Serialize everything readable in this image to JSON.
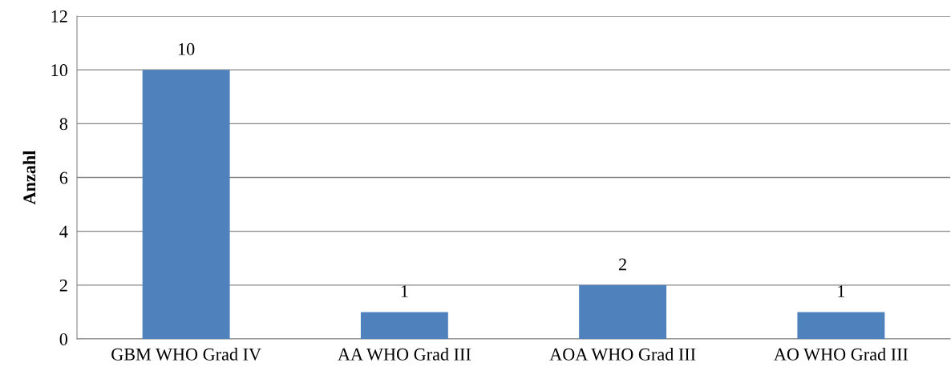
{
  "chart_data": {
    "type": "bar",
    "ylabel": "Anzahl",
    "categories": [
      "GBM WHO Grad IV",
      "AA WHO Grad III",
      "AOA WHO Grad III",
      "AO WHO Grad III"
    ],
    "values": [
      10,
      1,
      2,
      1
    ],
    "color": "#4f81bd",
    "ylim": [
      0,
      12
    ],
    "yticks": [
      0,
      2,
      4,
      6,
      8,
      10,
      12
    ],
    "grid": "y",
    "data_labels": true
  }
}
